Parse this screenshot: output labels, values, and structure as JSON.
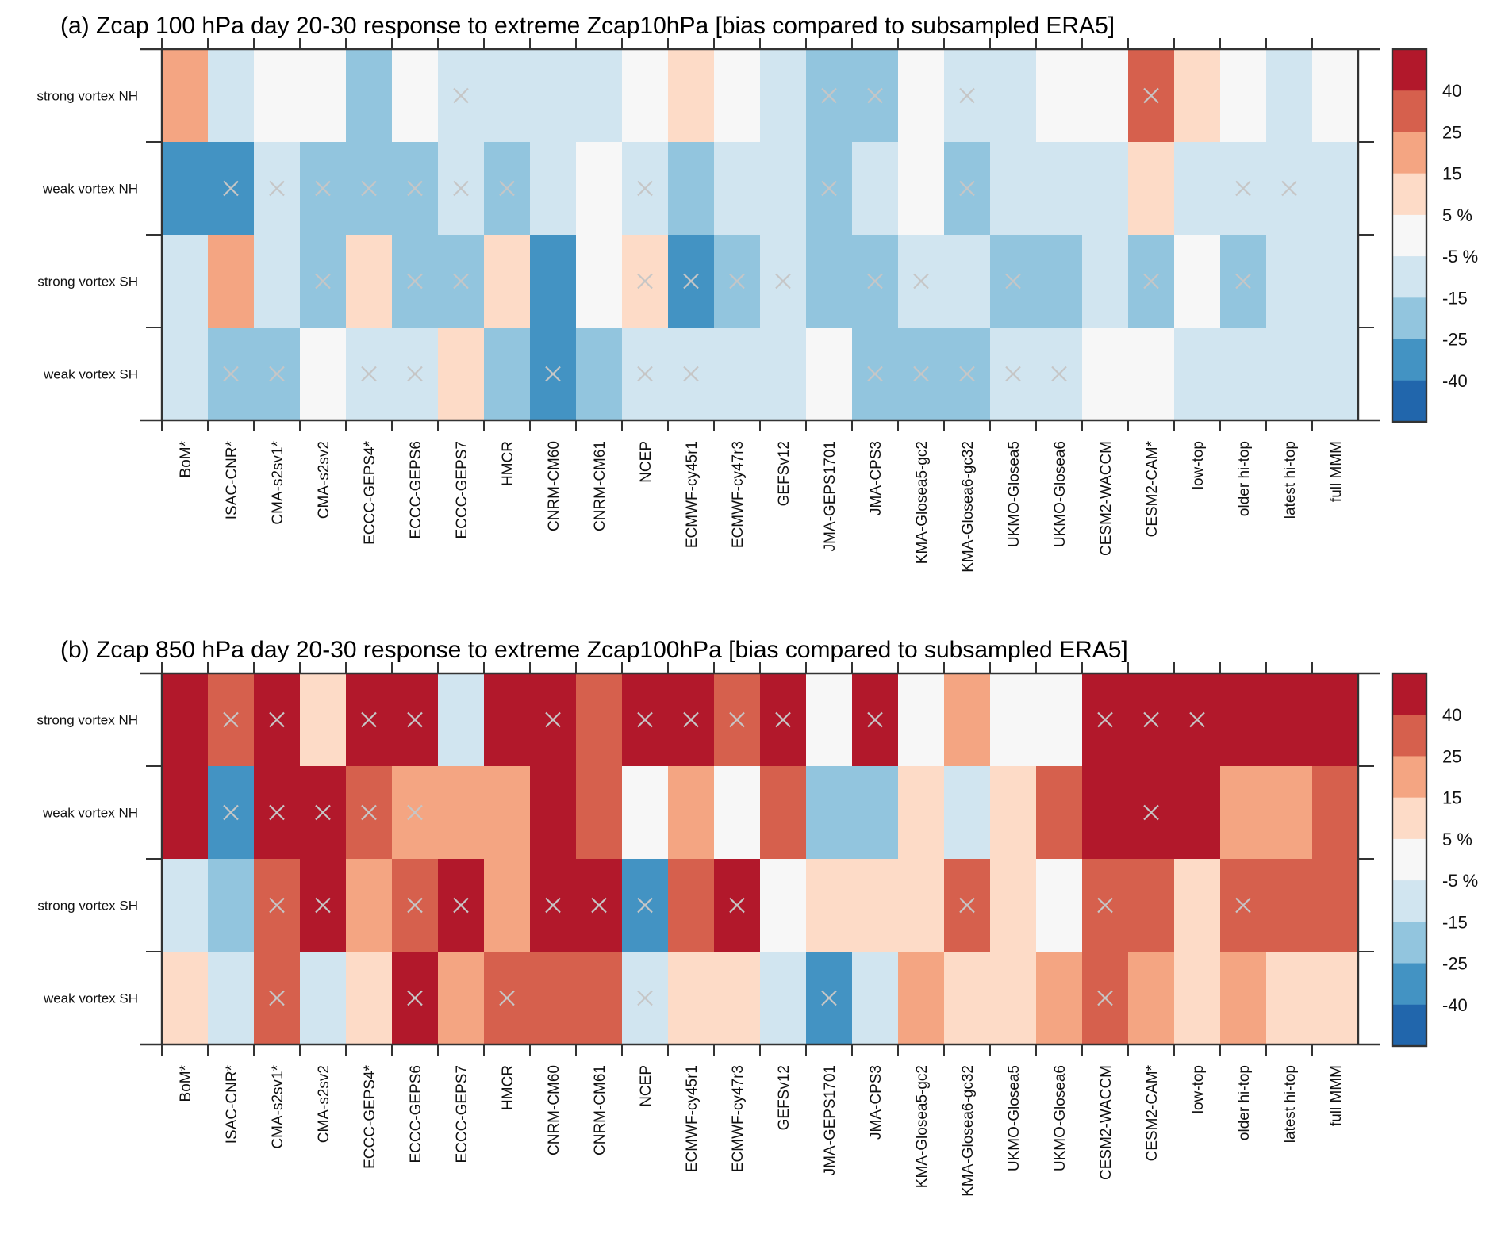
{
  "chart_data": [
    {
      "type": "heatmap",
      "panel": "a",
      "title": "(a) Zcap 100 hPa day 20-30 response to extreme Zcap10hPa  [bias compared to subsampled ERA5]",
      "value_encoding": "bin code: 4 = >40%, 3 = 25..40%, 2 = 15..25%, 1 = 5..15%, 0 = -5..5%, -1 = -15..-5%, -2 = -25..-15%, -3 = -40..-25%, -4 = <-40%",
      "rows": [
        "strong vortex NH",
        "weak vortex NH",
        "strong vortex SH",
        "weak vortex SH"
      ],
      "columns": [
        "BoM*",
        "ISAC-CNR*",
        "CMA-s2sv1*",
        "CMA-s2sv2",
        "ECCC-GEPS4*",
        "ECCC-GEPS6",
        "ECCC-GEPS7",
        "HMCR",
        "CNRM-CM60",
        "CNRM-CM61",
        "NCEP",
        "ECMWF-cy45r1",
        "ECMWF-cy47r3",
        "GEFSv12",
        "JMA-GEPS1701",
        "JMA-CPS3",
        "KMA-Glosea5-gc2",
        "KMA-Glosea6-gc32",
        "UKMO-Glosea5",
        "UKMO-Glosea6",
        "CESM2-WACCM",
        "CESM2-CAM*",
        "low-top",
        "older hi-top",
        "latest hi-top",
        "full MMM"
      ],
      "values": [
        [
          2,
          -1,
          0,
          0,
          -2,
          0,
          -1,
          -1,
          -1,
          -1,
          0,
          1,
          0,
          -1,
          -2,
          -2,
          0,
          -1,
          -1,
          0,
          0,
          3,
          1,
          0,
          -1,
          0
        ],
        [
          -3,
          -3,
          -1,
          -2,
          -2,
          -2,
          -1,
          -2,
          -1,
          0,
          -1,
          -2,
          -1,
          -1,
          -2,
          -1,
          0,
          -2,
          -1,
          -1,
          -1,
          1,
          -1,
          -1,
          -1,
          -1
        ],
        [
          -1,
          2,
          -1,
          -2,
          1,
          -2,
          -2,
          1,
          -3,
          0,
          1,
          -3,
          -2,
          -1,
          -2,
          -2,
          -1,
          -1,
          -2,
          -2,
          -1,
          -2,
          0,
          -2,
          -1,
          -1
        ],
        [
          -1,
          -2,
          -2,
          0,
          -1,
          -1,
          1,
          -2,
          -3,
          -2,
          -1,
          -1,
          -1,
          -1,
          0,
          -2,
          -2,
          -2,
          -1,
          -1,
          0,
          0,
          -1,
          -1,
          -1,
          -1
        ]
      ],
      "crossed": [
        [
          0,
          0,
          0,
          0,
          0,
          0,
          1,
          0,
          0,
          0,
          0,
          0,
          0,
          0,
          1,
          1,
          0,
          1,
          0,
          0,
          0,
          1,
          0,
          0,
          0,
          0
        ],
        [
          0,
          1,
          1,
          1,
          1,
          1,
          1,
          1,
          0,
          0,
          1,
          0,
          0,
          0,
          1,
          0,
          0,
          1,
          0,
          0,
          0,
          0,
          0,
          1,
          1,
          0
        ],
        [
          0,
          0,
          0,
          1,
          0,
          1,
          1,
          0,
          0,
          0,
          1,
          1,
          1,
          1,
          0,
          1,
          1,
          0,
          1,
          0,
          0,
          1,
          0,
          1,
          0,
          0
        ],
        [
          0,
          1,
          1,
          0,
          1,
          1,
          0,
          0,
          1,
          0,
          1,
          1,
          0,
          0,
          0,
          1,
          1,
          1,
          1,
          1,
          0,
          0,
          0,
          0,
          0,
          0
        ]
      ]
    },
    {
      "type": "heatmap",
      "panel": "b",
      "title": "(b) Zcap 850 hPa day 20-30 response to extreme Zcap100hPa [bias compared to subsampled ERA5]",
      "value_encoding": "bin code: 4 = >40%, 3 = 25..40%, 2 = 15..25%, 1 = 5..15%, 0 = -5..5%, -1 = -15..-5%, -2 = -25..-15%, -3 = -40..-25%, -4 = <-40%",
      "rows": [
        "strong vortex NH",
        "weak vortex NH",
        "strong vortex SH",
        "weak vortex SH"
      ],
      "columns": [
        "BoM*",
        "ISAC-CNR*",
        "CMA-s2sv1*",
        "CMA-s2sv2",
        "ECCC-GEPS4*",
        "ECCC-GEPS6",
        "ECCC-GEPS7",
        "HMCR",
        "CNRM-CM60",
        "CNRM-CM61",
        "NCEP",
        "ECMWF-cy45r1",
        "ECMWF-cy47r3",
        "GEFSv12",
        "JMA-GEPS1701",
        "JMA-CPS3",
        "KMA-Glosea5-gc2",
        "KMA-Glosea6-gc32",
        "UKMO-Glosea5",
        "UKMO-Glosea6",
        "CESM2-WACCM",
        "CESM2-CAM*",
        "low-top",
        "older hi-top",
        "latest hi-top",
        "full MMM"
      ],
      "values": [
        [
          4,
          3,
          4,
          1,
          4,
          4,
          -1,
          4,
          4,
          3,
          4,
          4,
          3,
          4,
          0,
          4,
          0,
          2,
          0,
          0,
          4,
          4,
          4,
          4,
          4,
          4
        ],
        [
          4,
          -3,
          4,
          4,
          3,
          2,
          2,
          2,
          4,
          3,
          0,
          2,
          0,
          3,
          -2,
          -2,
          1,
          -1,
          1,
          3,
          4,
          4,
          4,
          2,
          2,
          3
        ],
        [
          -1,
          -2,
          3,
          4,
          2,
          3,
          4,
          2,
          4,
          4,
          -3,
          3,
          4,
          0,
          1,
          1,
          1,
          3,
          1,
          0,
          3,
          3,
          1,
          3,
          3,
          3
        ],
        [
          1,
          -1,
          3,
          -1,
          1,
          4,
          2,
          3,
          3,
          3,
          -1,
          1,
          1,
          -1,
          -3,
          -1,
          2,
          1,
          1,
          2,
          3,
          2,
          1,
          2,
          1,
          1
        ]
      ],
      "crossed": [
        [
          0,
          1,
          1,
          0,
          1,
          1,
          0,
          0,
          1,
          0,
          1,
          1,
          1,
          1,
          0,
          1,
          0,
          0,
          0,
          0,
          1,
          1,
          1,
          0,
          0,
          0
        ],
        [
          0,
          1,
          1,
          1,
          1,
          1,
          0,
          0,
          0,
          0,
          0,
          0,
          0,
          0,
          0,
          0,
          0,
          0,
          0,
          0,
          0,
          1,
          0,
          0,
          0,
          0
        ],
        [
          0,
          0,
          1,
          1,
          0,
          1,
          1,
          0,
          1,
          1,
          1,
          0,
          1,
          0,
          0,
          0,
          0,
          1,
          0,
          0,
          1,
          0,
          0,
          1,
          0,
          0
        ],
        [
          0,
          0,
          1,
          0,
          0,
          1,
          0,
          1,
          0,
          0,
          1,
          0,
          0,
          0,
          1,
          0,
          0,
          0,
          0,
          0,
          1,
          0,
          0,
          0,
          0,
          0
        ]
      ]
    }
  ],
  "colorbar": {
    "bins": [
      {
        "code": 4,
        "range": ">40",
        "color": "#b2182b"
      },
      {
        "code": 3,
        "range": "25..40",
        "color": "#d6604d"
      },
      {
        "code": 2,
        "range": "15..25",
        "color": "#f4a582"
      },
      {
        "code": 1,
        "range": "5..15",
        "color": "#fddbc7"
      },
      {
        "code": 0,
        "range": "-5..5",
        "color": "#f7f7f7"
      },
      {
        "code": -1,
        "range": "-15..-5",
        "color": "#d1e5f0"
      },
      {
        "code": -2,
        "range": "-25..-15",
        "color": "#92c5de"
      },
      {
        "code": -3,
        "range": "-40..-25",
        "color": "#4393c3"
      },
      {
        "code": -4,
        "range": "<-40",
        "color": "#2166ac"
      }
    ],
    "labels": [
      "40",
      "25",
      "15",
      "5 %",
      "-5 %",
      "-15",
      "-25",
      "-40"
    ]
  },
  "significance_marker": "x",
  "marker_color": "#c6c6c6"
}
